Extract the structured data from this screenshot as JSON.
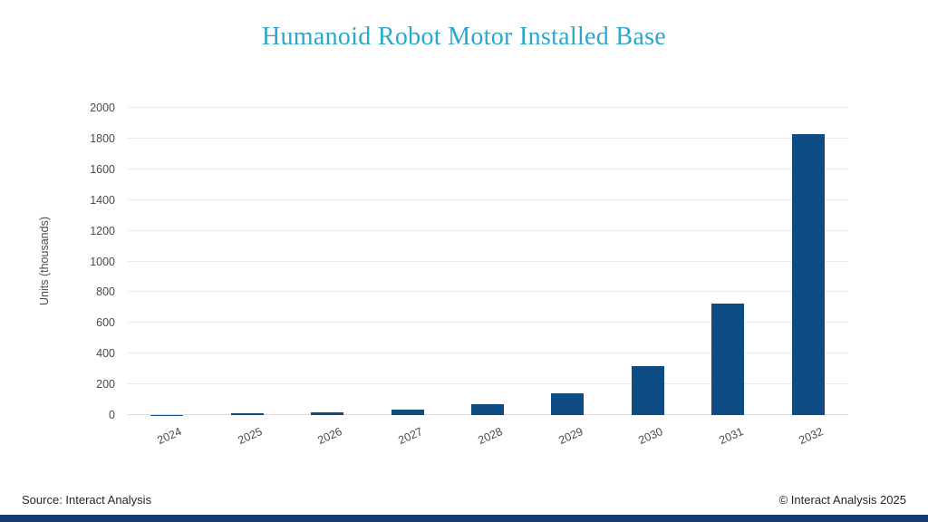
{
  "title": "Humanoid Robot Motor Installed Base",
  "chart_data": {
    "type": "bar",
    "title": "Humanoid Robot Motor Installed Base",
    "categories": [
      "2024",
      "2025",
      "2026",
      "2027",
      "2028",
      "2029",
      "2030",
      "2031",
      "2032"
    ],
    "values": [
      1,
      10,
      20,
      37,
      70,
      140,
      320,
      725,
      1830
    ],
    "xlabel": "",
    "ylabel": "Units (thousands)",
    "ylim": [
      0,
      2000
    ],
    "ytick_step": 200,
    "yticks": [
      0,
      200,
      400,
      600,
      800,
      1000,
      1200,
      1400,
      1600,
      1800,
      2000
    ],
    "grid": true,
    "legend": "none",
    "bar_color": "#0E4C84"
  },
  "footer": {
    "source": "Source: Interact Analysis",
    "copyright": "© Interact Analysis 2025"
  },
  "colors": {
    "title": "#2BA7CC",
    "bar": "#0E4C84",
    "grid": "#ECECEC",
    "baseline": "#DEDEDE",
    "axis_text": "#4A4A4A",
    "footer_text": "#262626",
    "brand_bar": "#143C6E"
  }
}
